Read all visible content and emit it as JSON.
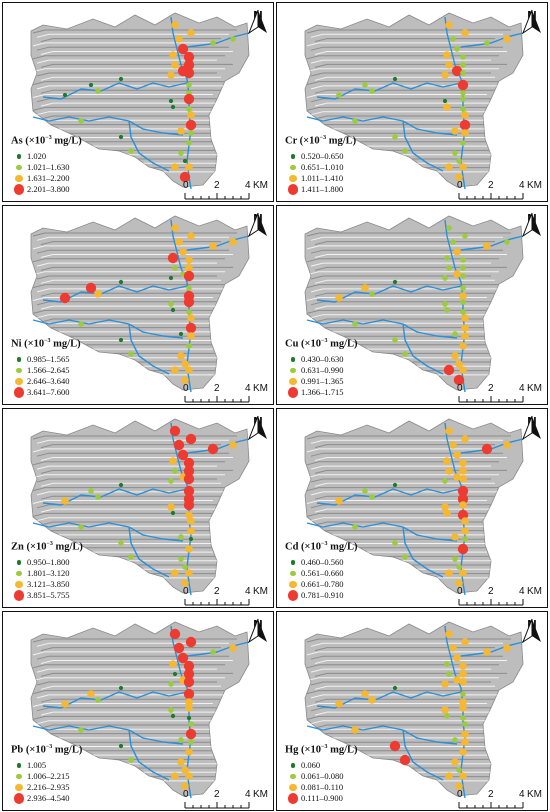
{
  "scale_bar": {
    "ticks": [
      "0",
      "2",
      "4"
    ],
    "unit": "KM"
  },
  "north_label": "N",
  "colors": {
    "class1": "#1f7a2a",
    "class2": "#9ccc3a",
    "class3": "#f6b830",
    "class4": "#ee3b32",
    "river": "#2b8fd8",
    "terrain": "#bdbdbd"
  },
  "panels": [
    {
      "element": "As",
      "title": "As (×10",
      "exp": "−3",
      "unit": " mg/L)",
      "classes": [
        "1.020",
        "1.021–1.630",
        "1.631–2.200",
        "2.201–3.800"
      ]
    },
    {
      "element": "Cr",
      "title": "Cr (×10",
      "exp": "−3",
      "unit": " mg/L)",
      "classes": [
        "0.520–0.650",
        "0.651–1.010",
        "1.011–1.410",
        "1.411–1.800"
      ]
    },
    {
      "element": "Ni",
      "title": "Ni (×10",
      "exp": "−3",
      "unit": " mg/L)",
      "classes": [
        "0.985–1.565",
        "1.566–2.645",
        "2.646–3.640",
        "3.641–7.600"
      ]
    },
    {
      "element": "Cu",
      "title": "Cu (×10",
      "exp": "−3",
      "unit": " mg/L)",
      "classes": [
        "0.430–0.630",
        "0.631–0.990",
        "0.991–1.365",
        "1.366–1.715"
      ]
    },
    {
      "element": "Zn",
      "title": "Zn (×10",
      "exp": "−3",
      "unit": " mg/L)",
      "classes": [
        "0.950–1.800",
        "1.801–3.120",
        "3.121–3.850",
        "3.851–5.755"
      ]
    },
    {
      "element": "Cd",
      "title": "Cd (×10",
      "exp": "−3",
      "unit": " mg/L)",
      "classes": [
        "0.460–0.560",
        "0.561–0.660",
        "0.661–0.780",
        "0.781–0.910"
      ]
    },
    {
      "element": "Pb",
      "title": "Pb (×10",
      "exp": "−3",
      "unit": " mg/L)",
      "classes": [
        "1.005",
        "1.006–2.215",
        "2.216–2.935",
        "2.936–4.540"
      ]
    },
    {
      "element": "Hg",
      "title": "Hg (×10",
      "exp": "−3",
      "unit": " mg/L)",
      "classes": [
        "0.060",
        "0.061–0.080",
        "0.081–0.110",
        "0.111–0.900"
      ]
    }
  ],
  "sampling_sites": {
    "As": [
      1,
      2,
      1,
      1,
      2,
      2,
      3,
      2,
      3,
      3,
      4,
      2,
      1,
      2,
      3,
      4,
      2,
      1,
      3,
      2,
      2,
      1,
      3,
      3,
      3,
      3,
      4,
      4,
      4,
      4,
      4,
      4,
      3,
      2,
      1,
      2
    ],
    "Cr": [
      1,
      2,
      2,
      2,
      2,
      3,
      3,
      4,
      3,
      3,
      4,
      2,
      1,
      2,
      3,
      4,
      3,
      3,
      3,
      2,
      2,
      2,
      3,
      3,
      3,
      2,
      2,
      2,
      2,
      2,
      2,
      3,
      3,
      2,
      2,
      2
    ],
    "Ni": [
      1,
      3,
      4,
      4,
      3,
      3,
      4,
      2,
      1,
      2,
      2,
      4,
      2,
      2,
      3,
      4,
      3,
      1,
      1,
      2,
      3,
      3,
      3,
      3,
      3,
      3,
      3,
      3,
      3,
      4,
      4,
      3,
      3,
      2,
      1,
      2
    ],
    "Cu": [
      1,
      2,
      3,
      3,
      3,
      2,
      2,
      2,
      2,
      2,
      3,
      3,
      2,
      2,
      3,
      3,
      3,
      2,
      2,
      3,
      3,
      3,
      3,
      2,
      2,
      2,
      3,
      2,
      2,
      2,
      2,
      4,
      4,
      2,
      2,
      2
    ],
    "Zn": [
      1,
      2,
      3,
      2,
      4,
      3,
      3,
      4,
      2,
      2,
      3,
      4,
      3,
      3,
      3,
      3,
      1,
      1,
      2,
      3,
      2,
      2,
      3,
      4,
      4,
      4,
      4,
      4,
      4,
      4,
      4,
      3,
      3,
      2,
      2,
      2
    ],
    "Cd": [
      1,
      2,
      3,
      2,
      4,
      3,
      3,
      4,
      2,
      3,
      3,
      4,
      3,
      4,
      3,
      3,
      2,
      3,
      3,
      4,
      2,
      2,
      3,
      3,
      3,
      3,
      3,
      3,
      3,
      3,
      3,
      3,
      3,
      2,
      2,
      2
    ],
    "Pb": [
      1,
      2,
      3,
      3,
      2,
      3,
      3,
      4,
      2,
      1,
      3,
      3,
      2,
      1,
      2,
      4,
      2,
      1,
      2,
      3,
      3,
      3,
      3,
      4,
      4,
      4,
      4,
      4,
      4,
      4,
      3,
      3,
      3,
      2,
      1,
      2
    ],
    "Hg": [
      1,
      3,
      3,
      3,
      3,
      3,
      2,
      2,
      3,
      2,
      3,
      3,
      3,
      2,
      2,
      3,
      3,
      2,
      2,
      3,
      3,
      2,
      3,
      3,
      3,
      3,
      3,
      3,
      3,
      3,
      3,
      3,
      3,
      4,
      4,
      3
    ]
  }
}
